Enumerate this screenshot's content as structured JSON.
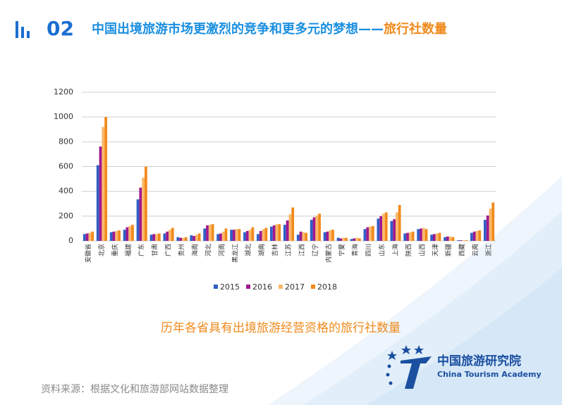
{
  "header": {
    "number": "02",
    "title": "中国出境旅游市场更激烈的竞争和更多元的梦想——",
    "highlight": "旅行社数量"
  },
  "chart_data": {
    "type": "bar",
    "categories": [
      "安徽省",
      "北京",
      "重庆",
      "福建",
      "广东",
      "甘肃",
      "广西",
      "贵州",
      "海南",
      "河北",
      "河南",
      "黑龙江",
      "湖北",
      "湖南",
      "吉林",
      "江苏",
      "江西",
      "辽宁",
      "内蒙古",
      "宁夏",
      "青海",
      "四川",
      "山东",
      "上海",
      "陕西",
      "山西",
      "天津",
      "新疆",
      "西藏",
      "云南",
      "浙江"
    ],
    "series": [
      {
        "name": "2015",
        "color": "#2f5fc4",
        "values": [
          55,
          611,
          70,
          90,
          335,
          50,
          60,
          30,
          45,
          100,
          55,
          90,
          70,
          55,
          115,
          130,
          50,
          170,
          70,
          25,
          15,
          95,
          180,
          160,
          60,
          95,
          50,
          30,
          5,
          65,
          170
        ]
      },
      {
        "name": "2016",
        "color": "#a0198f",
        "values": [
          60,
          762,
          75,
          110,
          430,
          55,
          75,
          25,
          40,
          125,
          60,
          90,
          80,
          80,
          125,
          165,
          75,
          190,
          75,
          20,
          20,
          110,
          200,
          175,
          65,
          100,
          55,
          35,
          5,
          75,
          205
        ]
      },
      {
        "name": "2017",
        "color": "#fbb96b",
        "values": [
          65,
          920,
          80,
          120,
          510,
          55,
          90,
          25,
          50,
          130,
          75,
          95,
          90,
          95,
          135,
          215,
          70,
          205,
          85,
          25,
          25,
          115,
          220,
          230,
          70,
          105,
          60,
          35,
          5,
          80,
          260
        ]
      },
      {
        "name": "2018",
        "color": "#f28a1c",
        "values": [
          75,
          1000,
          85,
          130,
          600,
          60,
          105,
          30,
          60,
          135,
          100,
          95,
          110,
          105,
          135,
          270,
          65,
          220,
          90,
          25,
          20,
          120,
          230,
          290,
          75,
          95,
          65,
          30,
          5,
          85,
          310
        ]
      }
    ],
    "ylim": [
      0,
      1200
    ],
    "yticks": [
      0,
      200,
      400,
      600,
      800,
      1000,
      1200
    ],
    "grid": true,
    "legend": "bottom"
  },
  "caption": "历年各省具有出境旅游经营资格的旅行社数量",
  "source": "资料来源：根据文化和旅游部网站数据整理",
  "logo": {
    "cn": "中国旅游研究院",
    "en": "China Tourism Academy"
  }
}
